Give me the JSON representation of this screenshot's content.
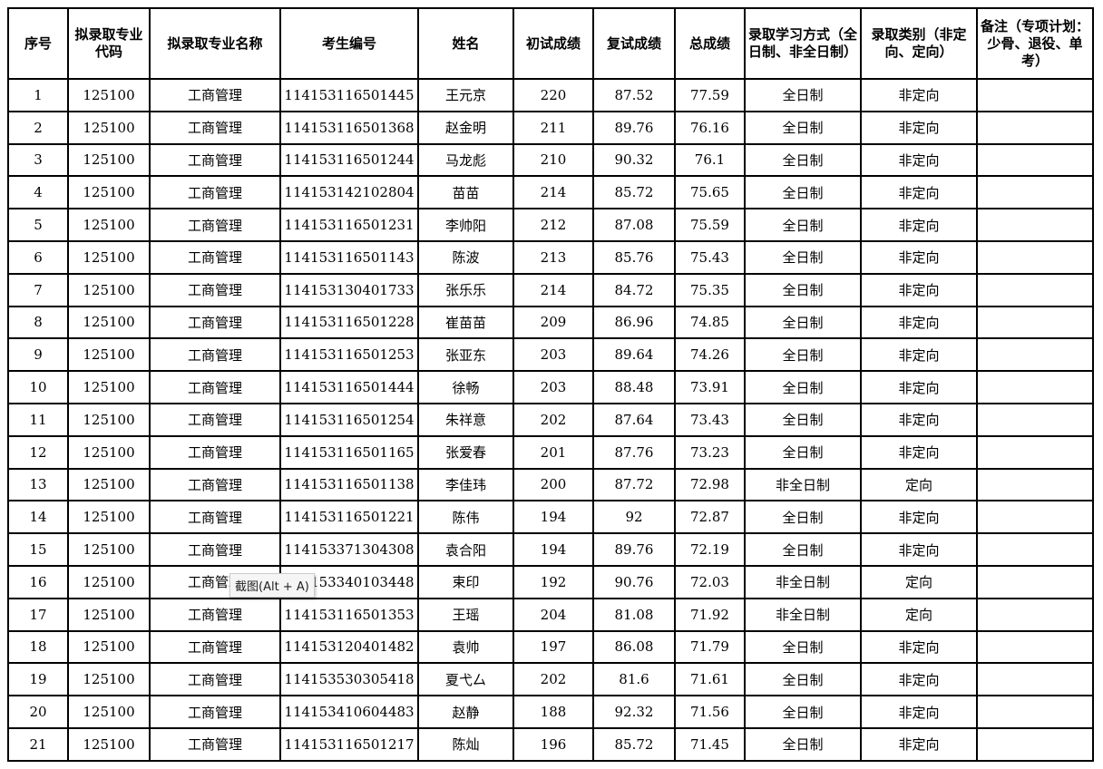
{
  "headers": [
    "序号",
    "拟录取专业代码",
    "拟录取专业名称",
    "考生编号",
    "姓名",
    "初试成绩",
    "复试成绩",
    "总成绩",
    "录取学习方式（全日制、非全日制）",
    "录取类别（非定向、定向）",
    "备注（专项计划：少骨、退役、单考）"
  ],
  "rows": [
    [
      "1",
      "125100",
      "工商管理",
      "114153116501445",
      "王元京",
      "220",
      "87.52",
      "77.59",
      "全日制",
      "非定向",
      ""
    ],
    [
      "2",
      "125100",
      "工商管理",
      "114153116501368",
      "赵金明",
      "211",
      "89.76",
      "76.16",
      "全日制",
      "非定向",
      ""
    ],
    [
      "3",
      "125100",
      "工商管理",
      "114153116501244",
      "马龙彪",
      "210",
      "90.32",
      "76.1",
      "全日制",
      "非定向",
      ""
    ],
    [
      "4",
      "125100",
      "工商管理",
      "114153142102804",
      "苗苗",
      "214",
      "85.72",
      "75.65",
      "全日制",
      "非定向",
      ""
    ],
    [
      "5",
      "125100",
      "工商管理",
      "114153116501231",
      "李帅阳",
      "212",
      "87.08",
      "75.59",
      "全日制",
      "非定向",
      ""
    ],
    [
      "6",
      "125100",
      "工商管理",
      "114153116501143",
      "陈波",
      "213",
      "85.76",
      "75.43",
      "全日制",
      "非定向",
      ""
    ],
    [
      "7",
      "125100",
      "工商管理",
      "114153130401733",
      "张乐乐",
      "214",
      "84.72",
      "75.35",
      "全日制",
      "非定向",
      ""
    ],
    [
      "8",
      "125100",
      "工商管理",
      "114153116501228",
      "崔苗苗",
      "209",
      "86.96",
      "74.85",
      "全日制",
      "非定向",
      ""
    ],
    [
      "9",
      "125100",
      "工商管理",
      "114153116501253",
      "张亚东",
      "203",
      "89.64",
      "74.26",
      "全日制",
      "非定向",
      ""
    ],
    [
      "10",
      "125100",
      "工商管理",
      "114153116501444",
      "徐畅",
      "203",
      "88.48",
      "73.91",
      "全日制",
      "非定向",
      ""
    ],
    [
      "11",
      "125100",
      "工商管理",
      "114153116501254",
      "朱祥意",
      "202",
      "87.64",
      "73.43",
      "全日制",
      "非定向",
      ""
    ],
    [
      "12",
      "125100",
      "工商管理",
      "114153116501165",
      "张爱春",
      "201",
      "87.76",
      "73.23",
      "全日制",
      "非定向",
      ""
    ],
    [
      "13",
      "125100",
      "工商管理",
      "114153116501138",
      "李佳玮",
      "200",
      "87.72",
      "72.98",
      "非全日制",
      "定向",
      ""
    ],
    [
      "14",
      "125100",
      "工商管理",
      "114153116501221",
      "陈伟",
      "194",
      "92",
      "72.87",
      "全日制",
      "非定向",
      ""
    ],
    [
      "15",
      "125100",
      "工商管理",
      "114153371304308",
      "袁合阳",
      "194",
      "89.76",
      "72.19",
      "全日制",
      "非定向",
      ""
    ],
    [
      "16",
      "125100",
      "工商管理",
      "114153340103448",
      "束印",
      "192",
      "90.76",
      "72.03",
      "非全日制",
      "定向",
      ""
    ],
    [
      "17",
      "125100",
      "工商管理",
      "114153116501353",
      "王瑶",
      "204",
      "81.08",
      "71.92",
      "非全日制",
      "定向",
      ""
    ],
    [
      "18",
      "125100",
      "工商管理",
      "114153120401482",
      "袁帅",
      "197",
      "86.08",
      "71.79",
      "全日制",
      "非定向",
      ""
    ],
    [
      "19",
      "125100",
      "工商管理",
      "114153530305418",
      "夏弋厶",
      "202",
      "81.6",
      "71.61",
      "全日制",
      "非定向",
      ""
    ],
    [
      "20",
      "125100",
      "工商管理",
      "114153410604483",
      "赵静",
      "188",
      "92.32",
      "71.56",
      "全日制",
      "非定向",
      ""
    ],
    [
      "21",
      "125100",
      "工商管理",
      "114153116501217",
      "陈灿",
      "196",
      "85.72",
      "71.45",
      "全日制",
      "非定向",
      ""
    ]
  ],
  "tooltip": "截图(Alt + A)"
}
